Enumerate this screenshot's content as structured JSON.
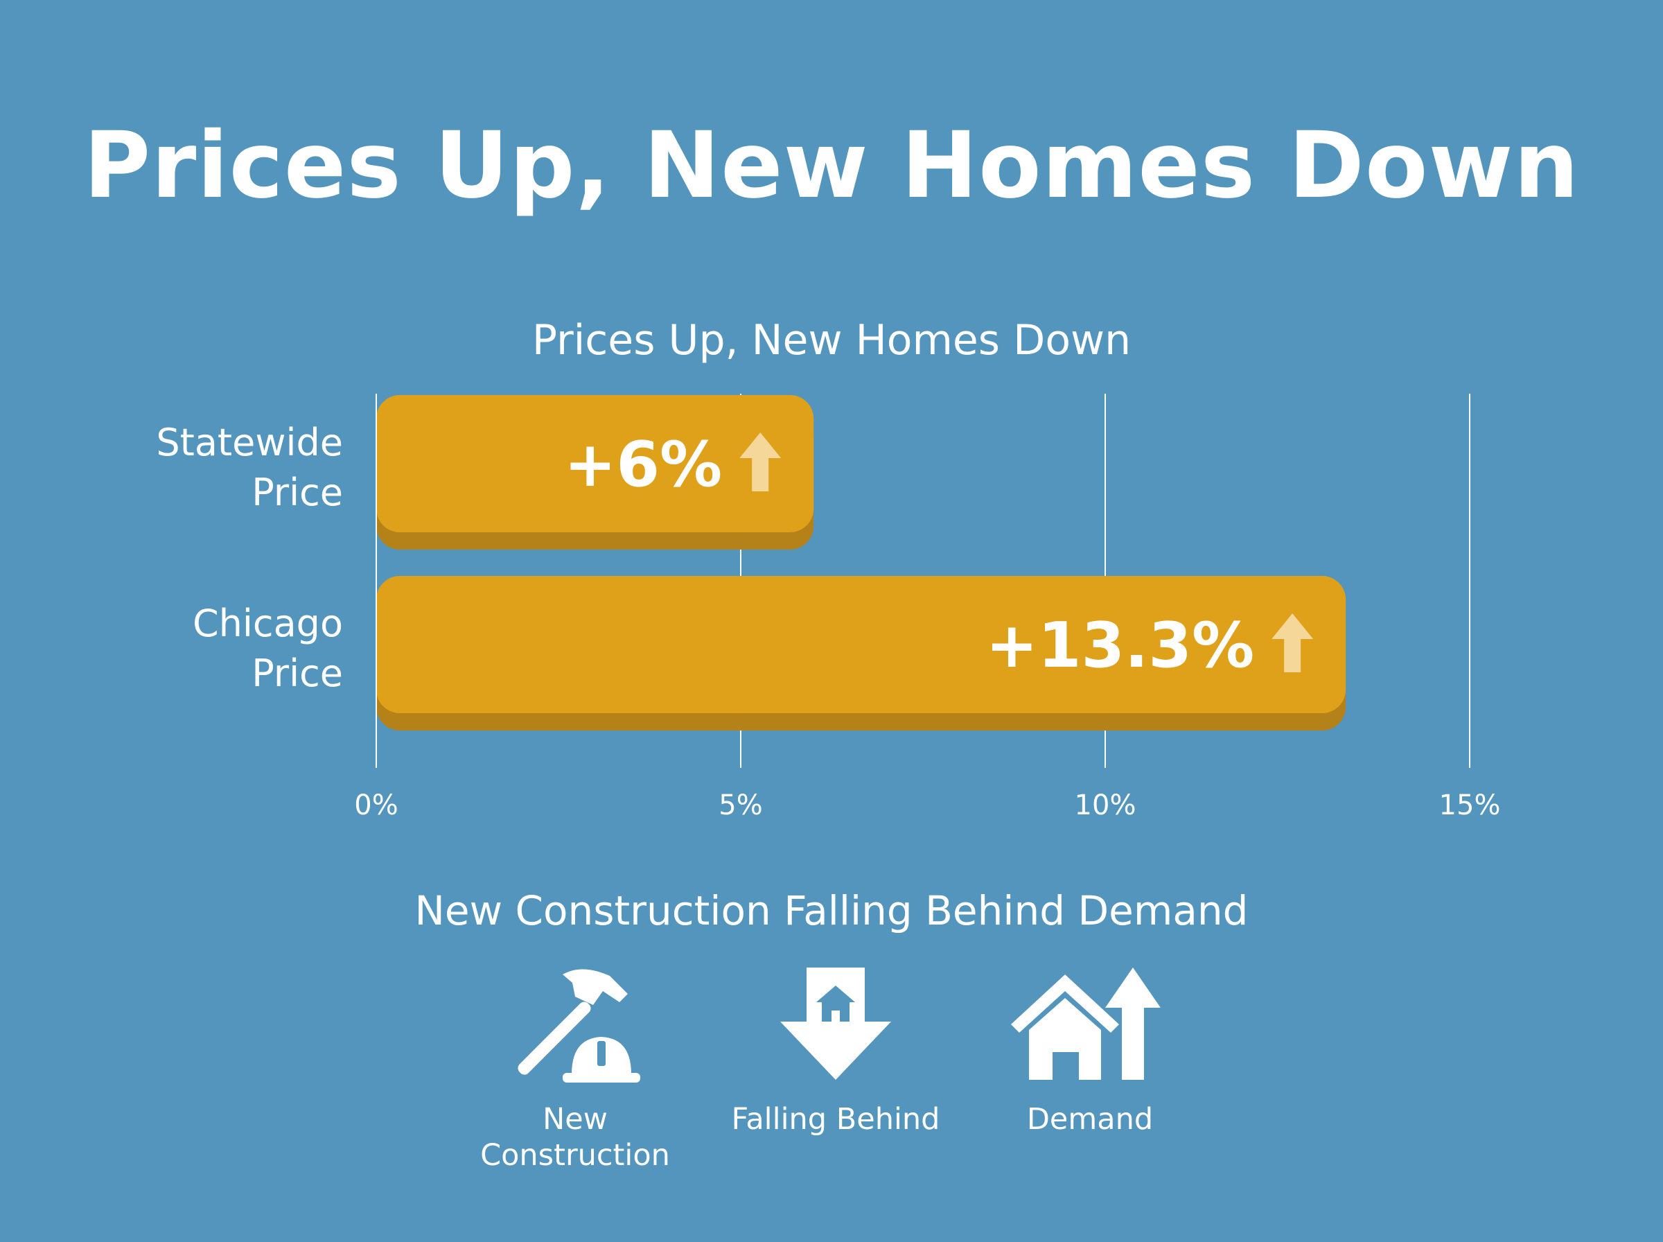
{
  "header": {
    "title": "Prices Up, New Homes Down"
  },
  "chart_data": {
    "type": "bar",
    "orientation": "horizontal",
    "title": "Prices Up, New Homes Down",
    "categories": [
      [
        "Statewide",
        "Price"
      ],
      [
        "Chicago",
        "Price"
      ]
    ],
    "values": [
      6,
      13.3
    ],
    "data_labels": [
      "+6%",
      "+13.3%"
    ],
    "xlim": [
      0,
      15
    ],
    "x_ticks": [
      0,
      5,
      10,
      15
    ],
    "x_tick_labels": [
      "0%",
      "5%",
      "10%",
      "15%"
    ],
    "grid": true,
    "colors": {
      "bar": "#e0a11a",
      "bar_shadow": "#b5821a",
      "arrow": "#f5d79a",
      "grid": "#ffffff",
      "background": "#5495bd"
    }
  },
  "section": {
    "title": "New Construction Falling Behind Demand",
    "items": [
      {
        "icon": "hammer-hardhat-icon",
        "label": "New Construction"
      },
      {
        "icon": "house-down-arrow-icon",
        "label": "Falling Behind"
      },
      {
        "icon": "house-up-arrow-icon",
        "label": "Demand"
      }
    ]
  }
}
